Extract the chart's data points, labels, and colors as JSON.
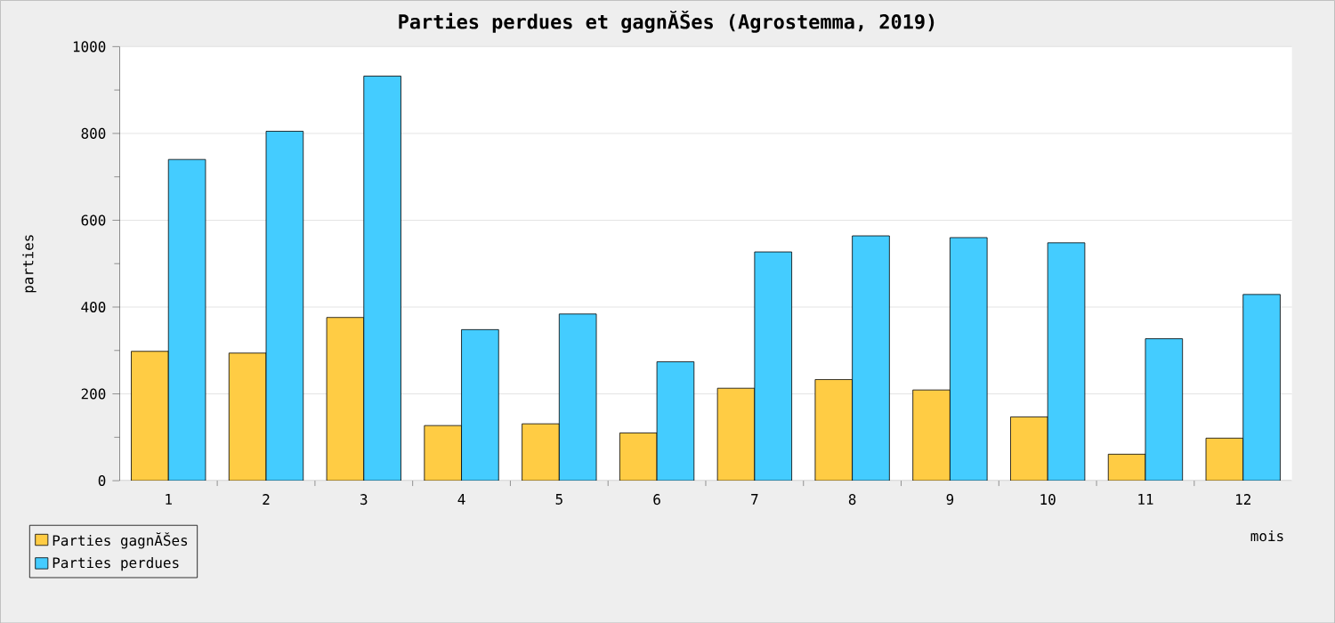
{
  "chart_data": {
    "type": "bar",
    "title": "Parties perdues et gagnĂŠes (Agrostemma, 2019)",
    "xlabel": "mois",
    "ylabel": "parties",
    "categories": [
      "1",
      "2",
      "3",
      "4",
      "5",
      "6",
      "7",
      "8",
      "9",
      "10",
      "11",
      "12"
    ],
    "series": [
      {
        "name": "Parties gagnĂŠes",
        "color": "#ffcc44",
        "values": [
          298,
          294,
          376,
          127,
          131,
          110,
          213,
          233,
          209,
          147,
          61,
          98
        ]
      },
      {
        "name": "Parties perdues",
        "color": "#44ccff",
        "values": [
          740,
          805,
          932,
          348,
          384,
          274,
          527,
          564,
          560,
          548,
          327,
          429
        ]
      }
    ],
    "ylim": [
      0,
      1000
    ],
    "yticks": [
      0,
      200,
      400,
      600,
      800,
      1000
    ],
    "grid": "y",
    "legend": "bottom left"
  }
}
